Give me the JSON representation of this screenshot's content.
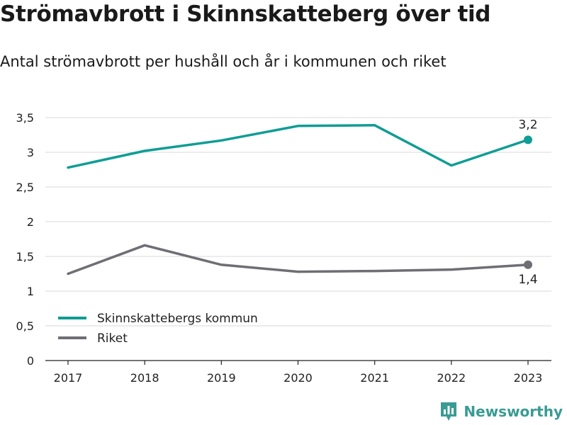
{
  "title": "Strömavbrott i Skinnskatteberg över tid",
  "subtitle": "Antal strömavbrott per hushåll och år i kommunen och riket",
  "brand": "Newsworthy",
  "colors": {
    "primary": "#0f9d94",
    "secondary": "#6e6e75",
    "grid": "#d9d9d9"
  },
  "chart_data": {
    "type": "line",
    "x": [
      "2017",
      "2018",
      "2019",
      "2020",
      "2021",
      "2022",
      "2023"
    ],
    "ylim": [
      0,
      3.5
    ],
    "yticks": [
      "0",
      "0,5",
      "1",
      "1,5",
      "2",
      "2,5",
      "3",
      "3,5"
    ],
    "ytick_values": [
      0,
      0.5,
      1,
      1.5,
      2,
      2.5,
      3,
      3.5
    ],
    "grid": true,
    "legend": "bottom-left",
    "series": [
      {
        "name": "Skinnskattebergs kommun",
        "values": [
          2.78,
          3.02,
          3.17,
          3.38,
          3.39,
          2.81,
          3.18
        ],
        "end_label": "3,2"
      },
      {
        "name": "Riket",
        "values": [
          1.25,
          1.66,
          1.38,
          1.28,
          1.29,
          1.31,
          1.38
        ],
        "end_label": "1,4"
      }
    ]
  }
}
